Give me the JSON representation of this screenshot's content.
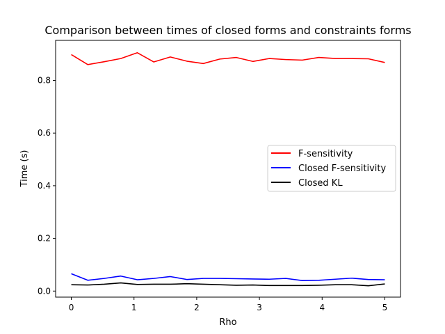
{
  "chart_data": {
    "type": "line",
    "title": "Comparison between times of closed forms and constraints forms",
    "xlabel": "Rho",
    "ylabel": "Time (s)",
    "xlim": [
      -0.25,
      5.25
    ],
    "ylim": [
      -0.023,
      0.952
    ],
    "xticks": [
      0,
      1,
      2,
      3,
      4,
      5
    ],
    "yticks": [
      0.0,
      0.2,
      0.4,
      0.6,
      0.8
    ],
    "grid": false,
    "legend_position": "center-right",
    "x": [
      0.0,
      0.263,
      0.526,
      0.789,
      1.053,
      1.316,
      1.579,
      1.842,
      2.105,
      2.368,
      2.632,
      2.895,
      3.158,
      3.421,
      3.684,
      3.947,
      4.211,
      4.474,
      4.737,
      5.0
    ],
    "series": [
      {
        "name": "F-sensitivity",
        "color": "#ff0000",
        "values": [
          0.898,
          0.86,
          0.871,
          0.883,
          0.905,
          0.87,
          0.889,
          0.873,
          0.864,
          0.881,
          0.887,
          0.872,
          0.883,
          0.879,
          0.877,
          0.887,
          0.883,
          0.883,
          0.882,
          0.868
        ]
      },
      {
        "name": "Closed F-sensitivity",
        "color": "#0000ff",
        "values": [
          0.066,
          0.041,
          0.048,
          0.057,
          0.043,
          0.048,
          0.055,
          0.044,
          0.048,
          0.048,
          0.047,
          0.046,
          0.045,
          0.048,
          0.04,
          0.041,
          0.045,
          0.049,
          0.044,
          0.043
        ]
      },
      {
        "name": "Closed KL",
        "color": "#000000",
        "values": [
          0.024,
          0.023,
          0.026,
          0.031,
          0.025,
          0.026,
          0.026,
          0.028,
          0.026,
          0.024,
          0.022,
          0.023,
          0.021,
          0.021,
          0.021,
          0.022,
          0.024,
          0.024,
          0.02,
          0.027
        ]
      }
    ]
  }
}
